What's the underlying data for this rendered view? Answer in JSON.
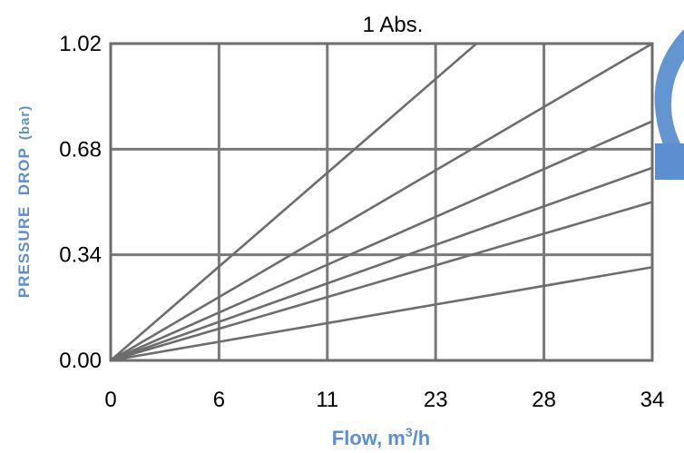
{
  "chart_data": {
    "type": "line",
    "title": "1 Abs.",
    "xlabel": "Flow, m",
    "xlabel_sup": "3",
    "xlabel_suffix": "/h",
    "ylabel_main": "PRESSURE  DROP",
    "ylabel_unit": "(bar)",
    "x_ticks": [
      "0",
      "6",
      "11",
      "23",
      "28",
      "34"
    ],
    "y_ticks": [
      "0.00",
      "0.34",
      "0.68",
      "1.02"
    ],
    "y_tick_values": [
      0,
      0.34,
      0.68,
      1.02
    ],
    "xlim": [
      0,
      34
    ],
    "ylim": [
      0,
      1.02
    ],
    "grid": true,
    "series": [
      {
        "x": [
          0,
          34
        ],
        "y": [
          0,
          1.51
        ]
      },
      {
        "x": [
          0,
          34
        ],
        "y": [
          0,
          1.02
        ]
      },
      {
        "x": [
          0,
          34
        ],
        "y": [
          0,
          0.77
        ]
      },
      {
        "x": [
          0,
          34
        ],
        "y": [
          0,
          0.62
        ]
      },
      {
        "x": [
          0,
          34
        ],
        "y": [
          0,
          0.51
        ]
      },
      {
        "x": [
          0,
          34
        ],
        "y": [
          0,
          0.3
        ]
      }
    ],
    "colors": {
      "label": "#5b8fcf",
      "line": "#6d6d6d",
      "grid": "#7a7a7a",
      "tick": "#000000"
    }
  }
}
